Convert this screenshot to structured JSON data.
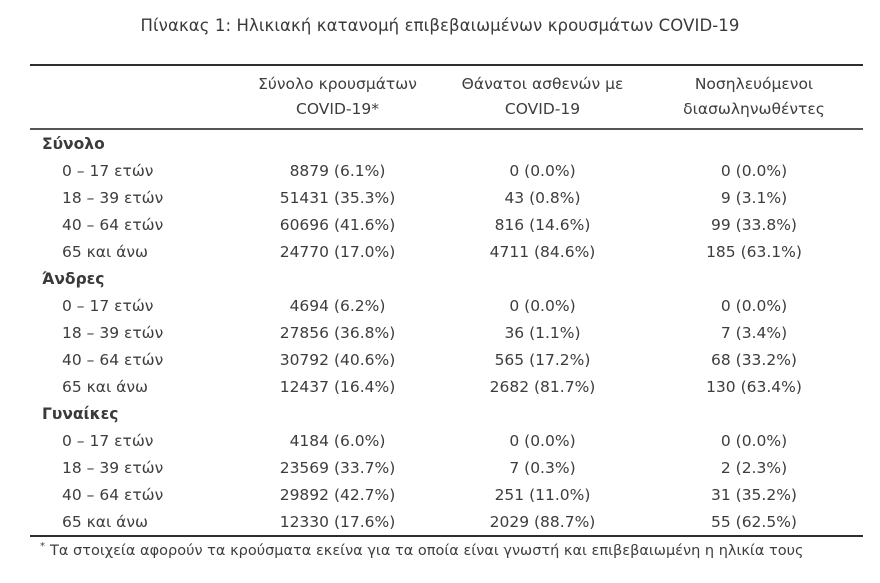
{
  "page": {
    "title": "Πίνακας 1: Ηλικιακή κατανομή επιβεβαιωμένων κρουσμάτων COVID-19"
  },
  "table": {
    "columns": [
      {
        "line1": "",
        "line2": ""
      },
      {
        "line1": "Σύνολο κρουσμάτων",
        "line2": "COVID-19*"
      },
      {
        "line1": "Θάνατοι ασθενών με",
        "line2": "COVID-19"
      },
      {
        "line1": "Νοσηλευόμενοι",
        "line2": "διασωληνωθέντες"
      }
    ],
    "sections": [
      {
        "label": "Σύνολο",
        "rows": [
          {
            "age": "0 – 17 ετών",
            "cases": "8879 (6.1%)",
            "deaths": "0 (0.0%)",
            "intubated": "0 (0.0%)"
          },
          {
            "age": "18 – 39 ετών",
            "cases": "51431 (35.3%)",
            "deaths": "43 (0.8%)",
            "intubated": "9 (3.1%)"
          },
          {
            "age": "40 – 64 ετών",
            "cases": "60696 (41.6%)",
            "deaths": "816 (14.6%)",
            "intubated": "99 (33.8%)"
          },
          {
            "age": "65 και άνω",
            "cases": "24770 (17.0%)",
            "deaths": "4711 (84.6%)",
            "intubated": "185 (63.1%)"
          }
        ]
      },
      {
        "label": "Άνδρες",
        "rows": [
          {
            "age": "0 – 17 ετών",
            "cases": "4694 (6.2%)",
            "deaths": "0 (0.0%)",
            "intubated": "0 (0.0%)"
          },
          {
            "age": "18 – 39 ετών",
            "cases": "27856 (36.8%)",
            "deaths": "36 (1.1%)",
            "intubated": "7 (3.4%)"
          },
          {
            "age": "40 – 64 ετών",
            "cases": "30792 (40.6%)",
            "deaths": "565 (17.2%)",
            "intubated": "68 (33.2%)"
          },
          {
            "age": "65 και άνω",
            "cases": "12437 (16.4%)",
            "deaths": "2682 (81.7%)",
            "intubated": "130 (63.4%)"
          }
        ]
      },
      {
        "label": "Γυναίκες",
        "rows": [
          {
            "age": "0 – 17 ετών",
            "cases": "4184 (6.0%)",
            "deaths": "0 (0.0%)",
            "intubated": "0 (0.0%)"
          },
          {
            "age": "18 – 39 ετών",
            "cases": "23569 (33.7%)",
            "deaths": "7 (0.3%)",
            "intubated": "2 (2.3%)"
          },
          {
            "age": "40 – 64 ετών",
            "cases": "29892 (42.7%)",
            "deaths": "251 (11.0%)",
            "intubated": "31 (35.2%)"
          },
          {
            "age": "65 και άνω",
            "cases": "12330 (17.6%)",
            "deaths": "2029 (88.7%)",
            "intubated": "55 (62.5%)"
          }
        ]
      }
    ],
    "footnote": {
      "marker": "*",
      "text": "Τα στοιχεία αφορούν τα κρούσματα εκείνα για τα οποία είναι γνωστή και επιβεβαιωμένη η ηλικία τους"
    }
  }
}
